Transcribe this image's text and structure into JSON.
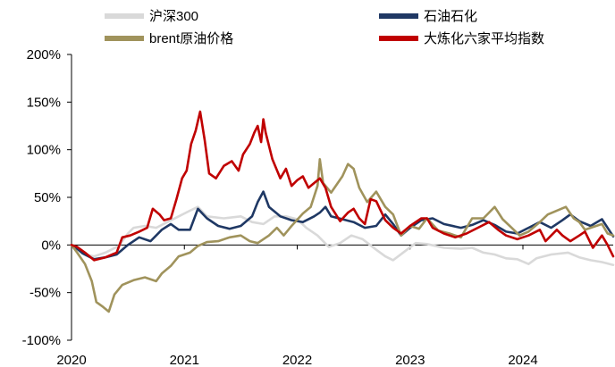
{
  "chart_data": {
    "type": "line",
    "title": "",
    "xlabel": "",
    "ylabel": "",
    "xlim": [
      2020.0,
      2024.8
    ],
    "ylim": [
      -100,
      200
    ],
    "y_ticks": [
      {
        "value": 200,
        "label": "200%"
      },
      {
        "value": 150,
        "label": "150%"
      },
      {
        "value": 100,
        "label": "100%"
      },
      {
        "value": 50,
        "label": "50%"
      },
      {
        "value": 0,
        "label": "0%"
      },
      {
        "value": -50,
        "label": "-50%"
      },
      {
        "value": -100,
        "label": "-100%"
      }
    ],
    "x_ticks": [
      {
        "value": 2020,
        "label": "2020"
      },
      {
        "value": 2021,
        "label": "2021"
      },
      {
        "value": 2022,
        "label": "2022"
      },
      {
        "value": 2023,
        "label": "2023"
      },
      {
        "value": 2024,
        "label": "2024"
      }
    ],
    "grid": false,
    "legend_position": "top",
    "series": [
      {
        "name": "沪深300",
        "color": "#d9d9d9",
        "points": [
          [
            2020.0,
            0
          ],
          [
            2020.05,
            -3
          ],
          [
            2020.12,
            -10
          ],
          [
            2020.2,
            -12
          ],
          [
            2020.3,
            -8
          ],
          [
            2020.42,
            -1
          ],
          [
            2020.5,
            12
          ],
          [
            2020.55,
            18
          ],
          [
            2020.65,
            20
          ],
          [
            2020.75,
            18
          ],
          [
            2020.85,
            24
          ],
          [
            2020.95,
            30
          ],
          [
            2021.05,
            36
          ],
          [
            2021.12,
            40
          ],
          [
            2021.2,
            30
          ],
          [
            2021.35,
            28
          ],
          [
            2021.5,
            30
          ],
          [
            2021.6,
            24
          ],
          [
            2021.7,
            22
          ],
          [
            2021.8,
            30
          ],
          [
            2021.9,
            30
          ],
          [
            2022.0,
            27
          ],
          [
            2022.08,
            18
          ],
          [
            2022.18,
            10
          ],
          [
            2022.28,
            -2
          ],
          [
            2022.38,
            2
          ],
          [
            2022.48,
            10
          ],
          [
            2022.58,
            6
          ],
          [
            2022.7,
            -5
          ],
          [
            2022.78,
            -12
          ],
          [
            2022.85,
            -16
          ],
          [
            2022.95,
            -7
          ],
          [
            2023.05,
            2
          ],
          [
            2023.15,
            1
          ],
          [
            2023.3,
            -3
          ],
          [
            2023.45,
            -4
          ],
          [
            2023.55,
            -3
          ],
          [
            2023.65,
            -8
          ],
          [
            2023.75,
            -10
          ],
          [
            2023.85,
            -14
          ],
          [
            2023.95,
            -15
          ],
          [
            2024.05,
            -20
          ],
          [
            2024.12,
            -14
          ],
          [
            2024.25,
            -10
          ],
          [
            2024.4,
            -8
          ],
          [
            2024.5,
            -13
          ],
          [
            2024.6,
            -16
          ],
          [
            2024.7,
            -18
          ],
          [
            2024.8,
            -21
          ]
        ]
      },
      {
        "name": "石油石化",
        "color": "#1f3864",
        "points": [
          [
            2020.0,
            0
          ],
          [
            2020.05,
            -4
          ],
          [
            2020.1,
            -9
          ],
          [
            2020.2,
            -15
          ],
          [
            2020.3,
            -13
          ],
          [
            2020.4,
            -10
          ],
          [
            2020.5,
            0
          ],
          [
            2020.6,
            8
          ],
          [
            2020.7,
            4
          ],
          [
            2020.8,
            16
          ],
          [
            2020.88,
            22
          ],
          [
            2020.95,
            16
          ],
          [
            2021.05,
            16
          ],
          [
            2021.12,
            38
          ],
          [
            2021.2,
            28
          ],
          [
            2021.3,
            20
          ],
          [
            2021.4,
            17
          ],
          [
            2021.5,
            20
          ],
          [
            2021.6,
            30
          ],
          [
            2021.65,
            45
          ],
          [
            2021.7,
            56
          ],
          [
            2021.75,
            40
          ],
          [
            2021.85,
            30
          ],
          [
            2021.95,
            26
          ],
          [
            2022.05,
            24
          ],
          [
            2022.15,
            30
          ],
          [
            2022.2,
            34
          ],
          [
            2022.25,
            40
          ],
          [
            2022.3,
            30
          ],
          [
            2022.4,
            27
          ],
          [
            2022.5,
            24
          ],
          [
            2022.6,
            18
          ],
          [
            2022.7,
            20
          ],
          [
            2022.78,
            32
          ],
          [
            2022.85,
            22
          ],
          [
            2022.92,
            10
          ],
          [
            2023.0,
            18
          ],
          [
            2023.1,
            26
          ],
          [
            2023.2,
            28
          ],
          [
            2023.3,
            22
          ],
          [
            2023.45,
            18
          ],
          [
            2023.55,
            21
          ],
          [
            2023.65,
            26
          ],
          [
            2023.75,
            21
          ],
          [
            2023.85,
            14
          ],
          [
            2023.95,
            12
          ],
          [
            2024.05,
            18
          ],
          [
            2024.15,
            24
          ],
          [
            2024.25,
            18
          ],
          [
            2024.35,
            26
          ],
          [
            2024.42,
            32
          ],
          [
            2024.5,
            25
          ],
          [
            2024.6,
            20
          ],
          [
            2024.7,
            27
          ],
          [
            2024.8,
            9
          ]
        ]
      },
      {
        "name": "brent原油价格",
        "color": "#a0935c",
        "points": [
          [
            2020.0,
            0
          ],
          [
            2020.05,
            -8
          ],
          [
            2020.12,
            -20
          ],
          [
            2020.18,
            -38
          ],
          [
            2020.22,
            -60
          ],
          [
            2020.28,
            -65
          ],
          [
            2020.33,
            -70
          ],
          [
            2020.38,
            -52
          ],
          [
            2020.45,
            -42
          ],
          [
            2020.55,
            -37
          ],
          [
            2020.65,
            -34
          ],
          [
            2020.75,
            -38
          ],
          [
            2020.8,
            -30
          ],
          [
            2020.88,
            -22
          ],
          [
            2020.95,
            -12
          ],
          [
            2021.05,
            -8
          ],
          [
            2021.12,
            -1
          ],
          [
            2021.2,
            3
          ],
          [
            2021.3,
            4
          ],
          [
            2021.4,
            8
          ],
          [
            2021.5,
            10
          ],
          [
            2021.58,
            4
          ],
          [
            2021.65,
            2
          ],
          [
            2021.75,
            10
          ],
          [
            2021.82,
            18
          ],
          [
            2021.88,
            10
          ],
          [
            2021.95,
            20
          ],
          [
            2022.05,
            33
          ],
          [
            2022.12,
            40
          ],
          [
            2022.18,
            62
          ],
          [
            2022.2,
            90
          ],
          [
            2022.23,
            65
          ],
          [
            2022.3,
            55
          ],
          [
            2022.4,
            72
          ],
          [
            2022.45,
            85
          ],
          [
            2022.5,
            80
          ],
          [
            2022.55,
            60
          ],
          [
            2022.62,
            45
          ],
          [
            2022.7,
            56
          ],
          [
            2022.78,
            40
          ],
          [
            2022.85,
            32
          ],
          [
            2022.92,
            10
          ],
          [
            2023.0,
            20
          ],
          [
            2023.08,
            17
          ],
          [
            2023.15,
            28
          ],
          [
            2023.25,
            15
          ],
          [
            2023.35,
            12
          ],
          [
            2023.45,
            8
          ],
          [
            2023.55,
            28
          ],
          [
            2023.65,
            28
          ],
          [
            2023.7,
            34
          ],
          [
            2023.75,
            40
          ],
          [
            2023.82,
            27
          ],
          [
            2023.9,
            18
          ],
          [
            2023.97,
            10
          ],
          [
            2024.05,
            14
          ],
          [
            2024.15,
            24
          ],
          [
            2024.22,
            32
          ],
          [
            2024.3,
            36
          ],
          [
            2024.38,
            40
          ],
          [
            2024.45,
            28
          ],
          [
            2024.5,
            24
          ],
          [
            2024.55,
            16
          ],
          [
            2024.6,
            18
          ],
          [
            2024.7,
            22
          ],
          [
            2024.75,
            12
          ],
          [
            2024.8,
            10
          ]
        ]
      },
      {
        "name": "大炼化六家平均指数",
        "color": "#c00000",
        "points": [
          [
            2020.0,
            0
          ],
          [
            2020.05,
            -2
          ],
          [
            2020.12,
            -8
          ],
          [
            2020.2,
            -16
          ],
          [
            2020.3,
            -13
          ],
          [
            2020.4,
            -8
          ],
          [
            2020.45,
            8
          ],
          [
            2020.52,
            10
          ],
          [
            2020.6,
            14
          ],
          [
            2020.67,
            18
          ],
          [
            2020.72,
            38
          ],
          [
            2020.78,
            32
          ],
          [
            2020.82,
            26
          ],
          [
            2020.88,
            28
          ],
          [
            2020.93,
            48
          ],
          [
            2020.98,
            70
          ],
          [
            2021.02,
            78
          ],
          [
            2021.06,
            106
          ],
          [
            2021.1,
            120
          ],
          [
            2021.14,
            140
          ],
          [
            2021.18,
            110
          ],
          [
            2021.22,
            75
          ],
          [
            2021.28,
            70
          ],
          [
            2021.35,
            83
          ],
          [
            2021.42,
            88
          ],
          [
            2021.48,
            78
          ],
          [
            2021.52,
            95
          ],
          [
            2021.58,
            106
          ],
          [
            2021.62,
            118
          ],
          [
            2021.65,
            125
          ],
          [
            2021.68,
            108
          ],
          [
            2021.7,
            132
          ],
          [
            2021.72,
            118
          ],
          [
            2021.78,
            90
          ],
          [
            2021.85,
            70
          ],
          [
            2021.9,
            80
          ],
          [
            2021.95,
            62
          ],
          [
            2022.0,
            68
          ],
          [
            2022.05,
            72
          ],
          [
            2022.1,
            60
          ],
          [
            2022.15,
            65
          ],
          [
            2022.2,
            70
          ],
          [
            2022.25,
            60
          ],
          [
            2022.3,
            40
          ],
          [
            2022.38,
            25
          ],
          [
            2022.45,
            34
          ],
          [
            2022.5,
            38
          ],
          [
            2022.55,
            28
          ],
          [
            2022.6,
            22
          ],
          [
            2022.65,
            48
          ],
          [
            2022.7,
            46
          ],
          [
            2022.78,
            26
          ],
          [
            2022.85,
            18
          ],
          [
            2022.92,
            12
          ],
          [
            2023.0,
            20
          ],
          [
            2023.1,
            28
          ],
          [
            2023.15,
            28
          ],
          [
            2023.2,
            18
          ],
          [
            2023.3,
            12
          ],
          [
            2023.4,
            8
          ],
          [
            2023.5,
            12
          ],
          [
            2023.6,
            18
          ],
          [
            2023.7,
            24
          ],
          [
            2023.78,
            16
          ],
          [
            2023.85,
            10
          ],
          [
            2023.95,
            6
          ],
          [
            2024.05,
            10
          ],
          [
            2024.15,
            16
          ],
          [
            2024.2,
            4
          ],
          [
            2024.3,
            16
          ],
          [
            2024.35,
            10
          ],
          [
            2024.42,
            4
          ],
          [
            2024.5,
            10
          ],
          [
            2024.55,
            14
          ],
          [
            2024.62,
            -3
          ],
          [
            2024.7,
            10
          ],
          [
            2024.75,
            0
          ],
          [
            2024.8,
            -12
          ]
        ]
      }
    ]
  },
  "legend": [
    {
      "label": "沪深300",
      "color": "#d9d9d9"
    },
    {
      "label": "石油石化",
      "color": "#1f3864"
    },
    {
      "label": "brent原油价格",
      "color": "#a0935c"
    },
    {
      "label": "大炼化六家平均指数",
      "color": "#c00000"
    }
  ]
}
